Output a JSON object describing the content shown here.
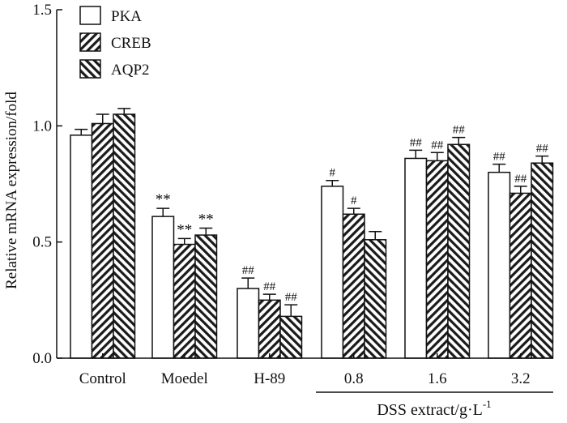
{
  "chart_data": {
    "type": "bar",
    "title": "",
    "ylabel": "Relative mRNA expression/fold",
    "xgroup_label": "DSS extract/g·L",
    "xgroup_label_sup": "-1",
    "ylim": [
      0,
      1.5
    ],
    "yticks": [
      "0.0",
      "0.5",
      "1.0",
      "1.5"
    ],
    "ytick_values": [
      0,
      0.5,
      1.0,
      1.5
    ],
    "categories": [
      "Control",
      "Moedel",
      "H-89",
      "0.8",
      "1.6",
      "3.2"
    ],
    "grouped_categories": [
      "0.8",
      "1.6",
      "3.2"
    ],
    "series": [
      {
        "name": "PKA",
        "pattern": "open",
        "values": [
          0.96,
          0.61,
          0.3,
          0.74,
          0.86,
          0.8
        ],
        "errors": [
          0.025,
          0.035,
          0.045,
          0.025,
          0.035,
          0.035
        ],
        "annotations": [
          "",
          "**",
          "##",
          "#",
          "##",
          "##"
        ]
      },
      {
        "name": "CREB",
        "pattern": "forward-hatch",
        "values": [
          1.01,
          0.49,
          0.25,
          0.62,
          0.85,
          0.71
        ],
        "errors": [
          0.04,
          0.025,
          0.025,
          0.025,
          0.035,
          0.03
        ],
        "annotations": [
          "",
          "**",
          "##",
          "#",
          "##",
          "##"
        ]
      },
      {
        "name": "AQP2",
        "pattern": "back-hatch",
        "values": [
          1.05,
          0.53,
          0.18,
          0.51,
          0.92,
          0.84
        ],
        "errors": [
          0.025,
          0.03,
          0.05,
          0.035,
          0.03,
          0.03
        ],
        "annotations": [
          "",
          "**",
          "##",
          "",
          "##",
          "##"
        ]
      }
    ]
  }
}
